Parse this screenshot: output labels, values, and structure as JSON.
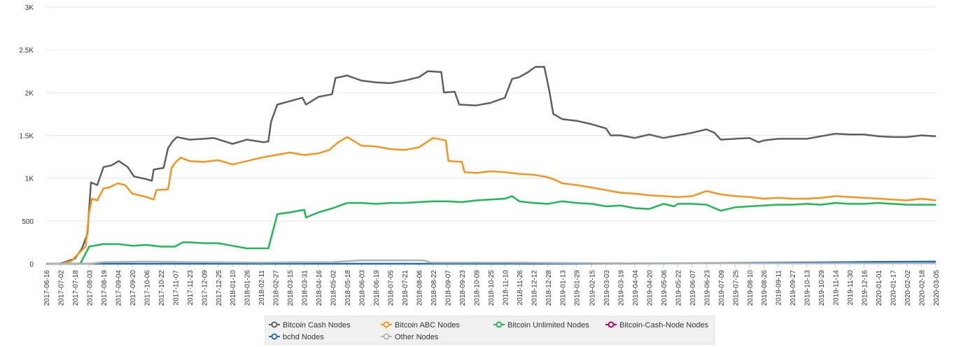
{
  "chart_data": {
    "type": "line",
    "title": "",
    "xlabel": "",
    "ylabel": "",
    "ylim": [
      0,
      3000
    ],
    "y_ticks": [
      0,
      500,
      1000,
      1500,
      2000,
      2500,
      3000
    ],
    "y_tick_labels": [
      "0",
      "500",
      "1K",
      "1.5K",
      "2K",
      "2.5K",
      "3K"
    ],
    "grid": true,
    "legend_position": "bottom",
    "x_tick_labels": [
      "2017-06-16",
      "2017-07-02",
      "2017-07-18",
      "2017-08-03",
      "2017-08-19",
      "2017-09-04",
      "2017-09-20",
      "2017-10-06",
      "2017-10-22",
      "2017-11-07",
      "2017-11-23",
      "2017-12-09",
      "2017-12-25",
      "2018-01-10",
      "2018-01-26",
      "2018-02-11",
      "2018-02-27",
      "2018-03-15",
      "2018-03-31",
      "2018-04-16",
      "2018-05-02",
      "2018-05-18",
      "2018-06-03",
      "2018-06-19",
      "2018-07-05",
      "2018-07-21",
      "2018-08-06",
      "2018-08-22",
      "2018-09-07",
      "2018-09-23",
      "2018-10-09",
      "2018-10-25",
      "2018-11-10",
      "2018-11-26",
      "2018-12-12",
      "2018-12-28",
      "2019-01-13",
      "2019-01-29",
      "2019-02-15",
      "2019-03-03",
      "2019-03-19",
      "2019-04-04",
      "2019-04-20",
      "2019-05-06",
      "2019-05-22",
      "2019-06-07",
      "2019-06-23",
      "2019-07-09",
      "2019-07-25",
      "2019-08-10",
      "2019-08-26",
      "2019-09-11",
      "2019-09-27",
      "2019-10-13",
      "2019-10-29",
      "2019-11-14",
      "2019-11-30",
      "2019-12-16",
      "2020-01-01",
      "2020-01-17",
      "2020-02-02",
      "2020-02-18",
      "2020-03-05"
    ],
    "x_range": [
      "2017-06-16",
      "2020-03-05"
    ],
    "series": [
      {
        "name": "Bitcoin Cash Nodes",
        "color": "#5f5f5f",
        "points": [
          [
            "2017-06-16",
            0
          ],
          [
            "2017-07-01",
            0
          ],
          [
            "2017-07-18",
            60
          ],
          [
            "2017-07-26",
            180
          ],
          [
            "2017-08-01",
            350
          ],
          [
            "2017-08-05",
            950
          ],
          [
            "2017-08-12",
            920
          ],
          [
            "2017-08-19",
            1130
          ],
          [
            "2017-08-28",
            1150
          ],
          [
            "2017-09-05",
            1200
          ],
          [
            "2017-09-15",
            1130
          ],
          [
            "2017-09-22",
            1020
          ],
          [
            "2017-10-05",
            990
          ],
          [
            "2017-10-12",
            970
          ],
          [
            "2017-10-14",
            1100
          ],
          [
            "2017-10-25",
            1120
          ],
          [
            "2017-10-30",
            1350
          ],
          [
            "2017-11-04",
            1430
          ],
          [
            "2017-11-09",
            1480
          ],
          [
            "2017-11-23",
            1450
          ],
          [
            "2017-12-09",
            1460
          ],
          [
            "2017-12-20",
            1470
          ],
          [
            "2018-01-10",
            1400
          ],
          [
            "2018-01-26",
            1450
          ],
          [
            "2018-02-14",
            1420
          ],
          [
            "2018-02-19",
            1430
          ],
          [
            "2018-02-22",
            1660
          ],
          [
            "2018-03-01",
            1860
          ],
          [
            "2018-03-15",
            1900
          ],
          [
            "2018-03-29",
            1940
          ],
          [
            "2018-04-02",
            1860
          ],
          [
            "2018-04-16",
            1950
          ],
          [
            "2018-05-01",
            1980
          ],
          [
            "2018-05-05",
            2170
          ],
          [
            "2018-05-18",
            2200
          ],
          [
            "2018-06-03",
            2140
          ],
          [
            "2018-06-19",
            2120
          ],
          [
            "2018-07-05",
            2110
          ],
          [
            "2018-07-21",
            2140
          ],
          [
            "2018-08-06",
            2180
          ],
          [
            "2018-08-16",
            2250
          ],
          [
            "2018-08-31",
            2240
          ],
          [
            "2018-09-03",
            2000
          ],
          [
            "2018-09-15",
            2010
          ],
          [
            "2018-09-20",
            1860
          ],
          [
            "2018-10-09",
            1850
          ],
          [
            "2018-10-25",
            1880
          ],
          [
            "2018-11-10",
            1940
          ],
          [
            "2018-11-18",
            2160
          ],
          [
            "2018-11-26",
            2180
          ],
          [
            "2018-12-06",
            2240
          ],
          [
            "2018-12-14",
            2300
          ],
          [
            "2018-12-24",
            2300
          ],
          [
            "2018-12-30",
            2000
          ],
          [
            "2019-01-03",
            1750
          ],
          [
            "2019-01-13",
            1690
          ],
          [
            "2019-01-29",
            1670
          ],
          [
            "2019-02-15",
            1630
          ],
          [
            "2019-03-03",
            1580
          ],
          [
            "2019-03-08",
            1500
          ],
          [
            "2019-03-19",
            1500
          ],
          [
            "2019-04-04",
            1470
          ],
          [
            "2019-04-20",
            1510
          ],
          [
            "2019-05-06",
            1470
          ],
          [
            "2019-05-22",
            1500
          ],
          [
            "2019-06-07",
            1530
          ],
          [
            "2019-06-23",
            1570
          ],
          [
            "2019-07-02",
            1530
          ],
          [
            "2019-07-09",
            1450
          ],
          [
            "2019-07-25",
            1460
          ],
          [
            "2019-08-10",
            1470
          ],
          [
            "2019-08-20",
            1420
          ],
          [
            "2019-08-26",
            1440
          ],
          [
            "2019-09-11",
            1460
          ],
          [
            "2019-09-27",
            1460
          ],
          [
            "2019-10-13",
            1460
          ],
          [
            "2019-10-29",
            1490
          ],
          [
            "2019-11-14",
            1520
          ],
          [
            "2019-11-30",
            1510
          ],
          [
            "2019-12-16",
            1510
          ],
          [
            "2020-01-01",
            1490
          ],
          [
            "2020-01-17",
            1480
          ],
          [
            "2020-02-02",
            1480
          ],
          [
            "2020-02-18",
            1500
          ],
          [
            "2020-03-05",
            1490
          ]
        ]
      },
      {
        "name": "Bitcoin ABC Nodes",
        "color": "#f7941d",
        "points": [
          [
            "2017-06-16",
            0
          ],
          [
            "2017-07-02",
            0
          ],
          [
            "2017-07-14",
            30
          ],
          [
            "2017-07-22",
            120
          ],
          [
            "2017-07-30",
            200
          ],
          [
            "2017-08-03",
            600
          ],
          [
            "2017-08-06",
            760
          ],
          [
            "2017-08-12",
            740
          ],
          [
            "2017-08-19",
            880
          ],
          [
            "2017-08-25",
            890
          ],
          [
            "2017-09-04",
            940
          ],
          [
            "2017-09-12",
            920
          ],
          [
            "2017-09-20",
            820
          ],
          [
            "2017-10-06",
            780
          ],
          [
            "2017-10-14",
            750
          ],
          [
            "2017-10-17",
            860
          ],
          [
            "2017-10-30",
            870
          ],
          [
            "2017-11-03",
            1120
          ],
          [
            "2017-11-07",
            1180
          ],
          [
            "2017-11-13",
            1240
          ],
          [
            "2017-11-23",
            1200
          ],
          [
            "2017-12-09",
            1190
          ],
          [
            "2017-12-25",
            1210
          ],
          [
            "2018-01-10",
            1160
          ],
          [
            "2018-01-26",
            1200
          ],
          [
            "2018-02-11",
            1240
          ],
          [
            "2018-02-27",
            1270
          ],
          [
            "2018-03-15",
            1300
          ],
          [
            "2018-03-31",
            1270
          ],
          [
            "2018-04-16",
            1290
          ],
          [
            "2018-04-28",
            1330
          ],
          [
            "2018-05-08",
            1420
          ],
          [
            "2018-05-18",
            1480
          ],
          [
            "2018-06-03",
            1380
          ],
          [
            "2018-06-19",
            1370
          ],
          [
            "2018-07-05",
            1340
          ],
          [
            "2018-07-21",
            1330
          ],
          [
            "2018-08-06",
            1360
          ],
          [
            "2018-08-22",
            1470
          ],
          [
            "2018-09-05",
            1440
          ],
          [
            "2018-09-08",
            1200
          ],
          [
            "2018-09-23",
            1190
          ],
          [
            "2018-09-26",
            1070
          ],
          [
            "2018-10-09",
            1060
          ],
          [
            "2018-10-25",
            1080
          ],
          [
            "2018-11-10",
            1070
          ],
          [
            "2018-11-26",
            1050
          ],
          [
            "2018-12-12",
            1040
          ],
          [
            "2018-12-28",
            1010
          ],
          [
            "2019-01-05",
            980
          ],
          [
            "2019-01-13",
            940
          ],
          [
            "2019-01-29",
            920
          ],
          [
            "2019-02-15",
            890
          ],
          [
            "2019-03-03",
            860
          ],
          [
            "2019-03-19",
            830
          ],
          [
            "2019-04-04",
            820
          ],
          [
            "2019-04-20",
            800
          ],
          [
            "2019-05-06",
            790
          ],
          [
            "2019-05-22",
            780
          ],
          [
            "2019-06-07",
            790
          ],
          [
            "2019-06-23",
            850
          ],
          [
            "2019-07-09",
            810
          ],
          [
            "2019-07-25",
            790
          ],
          [
            "2019-08-10",
            780
          ],
          [
            "2019-08-26",
            760
          ],
          [
            "2019-09-11",
            770
          ],
          [
            "2019-09-27",
            760
          ],
          [
            "2019-10-13",
            760
          ],
          [
            "2019-10-29",
            770
          ],
          [
            "2019-11-14",
            790
          ],
          [
            "2019-11-30",
            780
          ],
          [
            "2019-12-16",
            770
          ],
          [
            "2020-01-01",
            760
          ],
          [
            "2020-01-17",
            750
          ],
          [
            "2020-02-02",
            740
          ],
          [
            "2020-02-18",
            760
          ],
          [
            "2020-03-05",
            740
          ]
        ]
      },
      {
        "name": "Bitcoin Unlimited Nodes",
        "color": "#1db954",
        "points": [
          [
            "2017-06-16",
            0
          ],
          [
            "2017-07-24",
            0
          ],
          [
            "2017-07-27",
            60
          ],
          [
            "2017-08-03",
            200
          ],
          [
            "2017-08-19",
            230
          ],
          [
            "2017-09-04",
            230
          ],
          [
            "2017-09-20",
            210
          ],
          [
            "2017-10-06",
            220
          ],
          [
            "2017-10-22",
            200
          ],
          [
            "2017-11-07",
            200
          ],
          [
            "2017-11-15",
            250
          ],
          [
            "2017-11-23",
            250
          ],
          [
            "2017-12-09",
            240
          ],
          [
            "2017-12-25",
            240
          ],
          [
            "2018-01-10",
            210
          ],
          [
            "2018-01-26",
            180
          ],
          [
            "2018-02-11",
            180
          ],
          [
            "2018-02-19",
            180
          ],
          [
            "2018-02-27",
            500
          ],
          [
            "2018-03-01",
            580
          ],
          [
            "2018-03-15",
            600
          ],
          [
            "2018-03-31",
            630
          ],
          [
            "2018-04-02",
            540
          ],
          [
            "2018-04-16",
            600
          ],
          [
            "2018-05-02",
            650
          ],
          [
            "2018-05-18",
            710
          ],
          [
            "2018-06-03",
            710
          ],
          [
            "2018-06-19",
            700
          ],
          [
            "2018-07-05",
            710
          ],
          [
            "2018-07-21",
            710
          ],
          [
            "2018-08-06",
            720
          ],
          [
            "2018-08-22",
            730
          ],
          [
            "2018-09-07",
            730
          ],
          [
            "2018-09-23",
            720
          ],
          [
            "2018-10-09",
            740
          ],
          [
            "2018-10-25",
            750
          ],
          [
            "2018-11-10",
            760
          ],
          [
            "2018-11-18",
            790
          ],
          [
            "2018-11-26",
            730
          ],
          [
            "2018-12-12",
            710
          ],
          [
            "2018-12-28",
            700
          ],
          [
            "2019-01-13",
            730
          ],
          [
            "2019-01-29",
            710
          ],
          [
            "2019-02-15",
            700
          ],
          [
            "2019-03-03",
            670
          ],
          [
            "2019-03-19",
            680
          ],
          [
            "2019-04-04",
            650
          ],
          [
            "2019-04-20",
            640
          ],
          [
            "2019-05-06",
            700
          ],
          [
            "2019-05-18",
            670
          ],
          [
            "2019-05-22",
            700
          ],
          [
            "2019-06-07",
            700
          ],
          [
            "2019-06-23",
            690
          ],
          [
            "2019-07-09",
            620
          ],
          [
            "2019-07-25",
            660
          ],
          [
            "2019-08-10",
            670
          ],
          [
            "2019-08-26",
            680
          ],
          [
            "2019-09-11",
            690
          ],
          [
            "2019-09-27",
            690
          ],
          [
            "2019-10-13",
            700
          ],
          [
            "2019-10-29",
            690
          ],
          [
            "2019-11-14",
            710
          ],
          [
            "2019-11-30",
            700
          ],
          [
            "2019-12-16",
            700
          ],
          [
            "2020-01-01",
            710
          ],
          [
            "2020-01-17",
            700
          ],
          [
            "2020-02-02",
            690
          ],
          [
            "2020-02-18",
            690
          ],
          [
            "2020-03-05",
            690
          ]
        ]
      },
      {
        "name": "Bitcoin-Cash-Node Nodes",
        "color": "#b3005e",
        "points": [
          [
            "2020-02-28",
            0
          ],
          [
            "2020-03-01",
            18
          ],
          [
            "2020-03-05",
            25
          ]
        ]
      },
      {
        "name": "bchd Nodes",
        "color": "#1f6fb2",
        "points": [
          [
            "2017-06-16",
            0
          ],
          [
            "2018-11-10",
            0
          ],
          [
            "2019-03-03",
            2
          ],
          [
            "2019-07-09",
            8
          ],
          [
            "2019-10-13",
            15
          ],
          [
            "2020-01-01",
            22
          ],
          [
            "2020-03-05",
            25
          ]
        ]
      },
      {
        "name": "Other Nodes",
        "color": "#b3b3b3",
        "points": [
          [
            "2017-06-16",
            0
          ],
          [
            "2017-08-03",
            0
          ],
          [
            "2017-08-19",
            20
          ],
          [
            "2017-10-06",
            25
          ],
          [
            "2017-11-23",
            20
          ],
          [
            "2018-02-11",
            15
          ],
          [
            "2018-05-02",
            20
          ],
          [
            "2018-06-03",
            40
          ],
          [
            "2018-08-10",
            40
          ],
          [
            "2018-08-20",
            15
          ],
          [
            "2018-11-10",
            15
          ],
          [
            "2019-03-03",
            5
          ],
          [
            "2020-03-05",
            5
          ]
        ]
      }
    ]
  }
}
